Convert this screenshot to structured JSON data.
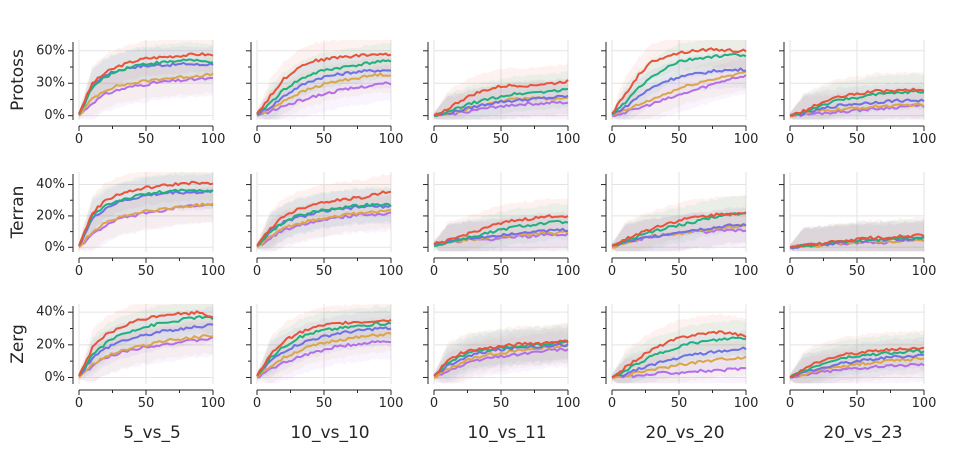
{
  "chart_data": {
    "type": "line",
    "title": "",
    "layout": "3 rows x 5 columns of subplots",
    "rows": [
      "Protoss",
      "Terran",
      "Zerg"
    ],
    "columns": [
      "5_vs_5",
      "10_vs_10",
      "10_vs_11",
      "20_vs_20",
      "20_vs_23"
    ],
    "x_ticks": [
      0,
      50,
      100
    ],
    "xlim": [
      0,
      100
    ],
    "y_ticks": {
      "Protoss": [
        "0%",
        "30%",
        "60%"
      ],
      "Terran": [
        "0%",
        "20%",
        "40%"
      ],
      "Zerg": [
        "0%",
        "20%",
        "40%"
      ]
    },
    "ylim": {
      "Protoss": [
        -0.04,
        0.7
      ],
      "Terran": [
        -0.03,
        0.48
      ],
      "Zerg": [
        -0.04,
        0.45
      ]
    },
    "x": [
      0,
      10,
      20,
      30,
      40,
      50,
      60,
      70,
      80,
      90,
      100
    ],
    "series_styles": [
      {
        "name": "red",
        "color": "#e8533a"
      },
      {
        "name": "green",
        "color": "#1fb07e"
      },
      {
        "name": "blue",
        "color": "#6f6fe6"
      },
      {
        "name": "orange",
        "color": "#dca548"
      },
      {
        "name": "purple",
        "color": "#b46fe8"
      }
    ],
    "panels": [
      {
        "row": "Protoss",
        "col": "5_vs_5",
        "series": [
          [
            0.02,
            0.3,
            0.4,
            0.46,
            0.5,
            0.53,
            0.54,
            0.55,
            0.56,
            0.57,
            0.56
          ],
          [
            0.01,
            0.26,
            0.36,
            0.42,
            0.46,
            0.48,
            0.49,
            0.5,
            0.52,
            0.5,
            0.5
          ],
          [
            0.01,
            0.28,
            0.38,
            0.42,
            0.45,
            0.46,
            0.47,
            0.47,
            0.48,
            0.47,
            0.48
          ],
          [
            0.0,
            0.16,
            0.24,
            0.28,
            0.3,
            0.32,
            0.34,
            0.35,
            0.36,
            0.37,
            0.38
          ],
          [
            0.0,
            0.12,
            0.2,
            0.24,
            0.27,
            0.29,
            0.31,
            0.32,
            0.33,
            0.34,
            0.34
          ]
        ]
      },
      {
        "row": "Protoss",
        "col": "10_vs_10",
        "series": [
          [
            0.02,
            0.18,
            0.34,
            0.44,
            0.5,
            0.52,
            0.54,
            0.55,
            0.56,
            0.57,
            0.56
          ],
          [
            0.01,
            0.12,
            0.24,
            0.32,
            0.38,
            0.42,
            0.44,
            0.46,
            0.48,
            0.5,
            0.5
          ],
          [
            0.01,
            0.08,
            0.18,
            0.26,
            0.32,
            0.36,
            0.38,
            0.4,
            0.41,
            0.42,
            0.42
          ],
          [
            0.0,
            0.06,
            0.14,
            0.2,
            0.25,
            0.29,
            0.32,
            0.34,
            0.36,
            0.38,
            0.38
          ],
          [
            0.0,
            0.04,
            0.09,
            0.13,
            0.17,
            0.2,
            0.23,
            0.25,
            0.27,
            0.29,
            0.3
          ]
        ]
      },
      {
        "row": "Protoss",
        "col": "10_vs_11",
        "series": [
          [
            0.0,
            0.06,
            0.14,
            0.2,
            0.24,
            0.27,
            0.28,
            0.28,
            0.29,
            0.3,
            0.32
          ],
          [
            0.0,
            0.03,
            0.08,
            0.12,
            0.15,
            0.18,
            0.2,
            0.21,
            0.22,
            0.23,
            0.24
          ],
          [
            0.0,
            0.02,
            0.05,
            0.08,
            0.11,
            0.13,
            0.14,
            0.15,
            0.16,
            0.17,
            0.18
          ],
          [
            0.0,
            0.02,
            0.05,
            0.08,
            0.11,
            0.14,
            0.15,
            0.16,
            0.16,
            0.16,
            0.16
          ],
          [
            0.0,
            0.01,
            0.03,
            0.05,
            0.07,
            0.09,
            0.1,
            0.11,
            0.11,
            0.12,
            0.12
          ]
        ]
      },
      {
        "row": "Protoss",
        "col": "20_vs_20",
        "series": [
          [
            0.02,
            0.2,
            0.38,
            0.5,
            0.55,
            0.58,
            0.6,
            0.61,
            0.61,
            0.6,
            0.6
          ],
          [
            0.01,
            0.12,
            0.26,
            0.36,
            0.44,
            0.5,
            0.52,
            0.54,
            0.55,
            0.56,
            0.56
          ],
          [
            0.01,
            0.08,
            0.18,
            0.26,
            0.32,
            0.36,
            0.38,
            0.4,
            0.42,
            0.42,
            0.43
          ],
          [
            0.0,
            0.05,
            0.1,
            0.15,
            0.2,
            0.25,
            0.29,
            0.32,
            0.35,
            0.38,
            0.4
          ],
          [
            0.0,
            0.03,
            0.07,
            0.11,
            0.15,
            0.19,
            0.23,
            0.27,
            0.31,
            0.35,
            0.37
          ]
        ]
      },
      {
        "row": "Protoss",
        "col": "20_vs_23",
        "series": [
          [
            0.0,
            0.04,
            0.1,
            0.15,
            0.18,
            0.2,
            0.22,
            0.23,
            0.23,
            0.24,
            0.23
          ],
          [
            0.0,
            0.03,
            0.08,
            0.12,
            0.15,
            0.17,
            0.19,
            0.2,
            0.21,
            0.22,
            0.22
          ],
          [
            0.0,
            0.02,
            0.05,
            0.08,
            0.1,
            0.11,
            0.12,
            0.13,
            0.14,
            0.14,
            0.14
          ],
          [
            0.0,
            0.02,
            0.04,
            0.05,
            0.06,
            0.07,
            0.08,
            0.09,
            0.09,
            0.1,
            0.1
          ],
          [
            0.0,
            0.01,
            0.02,
            0.03,
            0.04,
            0.05,
            0.06,
            0.07,
            0.08,
            0.09,
            0.09
          ]
        ]
      },
      {
        "row": "Terran",
        "col": "5_vs_5",
        "series": [
          [
            0.01,
            0.22,
            0.3,
            0.34,
            0.36,
            0.38,
            0.39,
            0.4,
            0.41,
            0.41,
            0.4
          ],
          [
            0.01,
            0.2,
            0.27,
            0.3,
            0.32,
            0.34,
            0.35,
            0.36,
            0.36,
            0.36,
            0.36
          ],
          [
            0.01,
            0.18,
            0.25,
            0.29,
            0.31,
            0.33,
            0.34,
            0.35,
            0.35,
            0.35,
            0.36
          ],
          [
            0.0,
            0.1,
            0.16,
            0.19,
            0.21,
            0.23,
            0.24,
            0.25,
            0.26,
            0.27,
            0.28
          ],
          [
            0.0,
            0.08,
            0.14,
            0.18,
            0.2,
            0.22,
            0.23,
            0.25,
            0.26,
            0.26,
            0.27
          ]
        ]
      },
      {
        "row": "Terran",
        "col": "10_vs_10",
        "series": [
          [
            0.01,
            0.12,
            0.2,
            0.24,
            0.27,
            0.29,
            0.3,
            0.31,
            0.32,
            0.34,
            0.36
          ],
          [
            0.01,
            0.1,
            0.16,
            0.2,
            0.22,
            0.24,
            0.25,
            0.26,
            0.27,
            0.27,
            0.27
          ],
          [
            0.01,
            0.1,
            0.16,
            0.19,
            0.21,
            0.23,
            0.24,
            0.25,
            0.26,
            0.26,
            0.26
          ],
          [
            0.0,
            0.07,
            0.12,
            0.15,
            0.17,
            0.19,
            0.2,
            0.21,
            0.22,
            0.23,
            0.23
          ],
          [
            0.0,
            0.06,
            0.11,
            0.14,
            0.16,
            0.18,
            0.19,
            0.2,
            0.21,
            0.21,
            0.22
          ]
        ]
      },
      {
        "row": "Terran",
        "col": "10_vs_11",
        "series": [
          [
            0.02,
            0.04,
            0.07,
            0.1,
            0.13,
            0.15,
            0.17,
            0.18,
            0.19,
            0.2,
            0.2
          ],
          [
            0.01,
            0.03,
            0.05,
            0.07,
            0.09,
            0.11,
            0.13,
            0.14,
            0.15,
            0.16,
            0.16
          ],
          [
            0.02,
            0.04,
            0.05,
            0.06,
            0.07,
            0.08,
            0.09,
            0.1,
            0.1,
            0.11,
            0.11
          ],
          [
            0.02,
            0.03,
            0.04,
            0.05,
            0.06,
            0.07,
            0.08,
            0.08,
            0.09,
            0.09,
            0.1
          ],
          [
            0.02,
            0.03,
            0.04,
            0.05,
            0.05,
            0.06,
            0.07,
            0.07,
            0.08,
            0.08,
            0.08
          ]
        ]
      },
      {
        "row": "Terran",
        "col": "20_vs_20",
        "series": [
          [
            0.01,
            0.05,
            0.09,
            0.12,
            0.15,
            0.17,
            0.19,
            0.2,
            0.21,
            0.22,
            0.21
          ],
          [
            0.01,
            0.04,
            0.07,
            0.1,
            0.12,
            0.14,
            0.16,
            0.18,
            0.2,
            0.21,
            0.22
          ],
          [
            0.01,
            0.03,
            0.05,
            0.07,
            0.08,
            0.1,
            0.11,
            0.12,
            0.13,
            0.14,
            0.14
          ],
          [
            0.0,
            0.03,
            0.05,
            0.07,
            0.08,
            0.09,
            0.1,
            0.11,
            0.12,
            0.13,
            0.14
          ],
          [
            0.0,
            0.03,
            0.05,
            0.07,
            0.08,
            0.09,
            0.1,
            0.1,
            0.11,
            0.11,
            0.11
          ]
        ]
      },
      {
        "row": "Terran",
        "col": "20_vs_23",
        "series": [
          [
            0.0,
            0.01,
            0.02,
            0.03,
            0.04,
            0.05,
            0.06,
            0.06,
            0.07,
            0.07,
            0.08
          ],
          [
            0.0,
            0.01,
            0.02,
            0.03,
            0.04,
            0.04,
            0.05,
            0.05,
            0.06,
            0.06,
            0.06
          ],
          [
            0.0,
            0.01,
            0.02,
            0.02,
            0.03,
            0.04,
            0.04,
            0.05,
            0.05,
            0.05,
            0.06
          ],
          [
            0.0,
            0.01,
            0.01,
            0.02,
            0.03,
            0.03,
            0.04,
            0.04,
            0.04,
            0.05,
            0.05
          ],
          [
            0.0,
            0.01,
            0.01,
            0.02,
            0.02,
            0.03,
            0.03,
            0.03,
            0.04,
            0.04,
            0.04
          ]
        ]
      },
      {
        "row": "Zerg",
        "col": "5_vs_5",
        "series": [
          [
            0.01,
            0.18,
            0.26,
            0.3,
            0.34,
            0.36,
            0.38,
            0.39,
            0.39,
            0.4,
            0.37
          ],
          [
            0.01,
            0.14,
            0.21,
            0.26,
            0.29,
            0.31,
            0.33,
            0.34,
            0.36,
            0.37,
            0.36
          ],
          [
            0.01,
            0.12,
            0.18,
            0.22,
            0.24,
            0.26,
            0.28,
            0.29,
            0.3,
            0.31,
            0.33
          ],
          [
            0.0,
            0.08,
            0.13,
            0.16,
            0.18,
            0.2,
            0.22,
            0.23,
            0.24,
            0.25,
            0.26
          ],
          [
            0.0,
            0.07,
            0.12,
            0.15,
            0.17,
            0.19,
            0.2,
            0.21,
            0.22,
            0.23,
            0.24
          ]
        ]
      },
      {
        "row": "Zerg",
        "col": "10_vs_10",
        "series": [
          [
            0.01,
            0.14,
            0.22,
            0.27,
            0.3,
            0.32,
            0.33,
            0.34,
            0.34,
            0.35,
            0.35
          ],
          [
            0.01,
            0.12,
            0.19,
            0.24,
            0.27,
            0.29,
            0.3,
            0.31,
            0.32,
            0.33,
            0.33
          ],
          [
            0.01,
            0.1,
            0.16,
            0.2,
            0.23,
            0.25,
            0.27,
            0.28,
            0.29,
            0.3,
            0.3
          ],
          [
            0.0,
            0.07,
            0.12,
            0.16,
            0.19,
            0.21,
            0.23,
            0.24,
            0.25,
            0.26,
            0.27
          ],
          [
            0.0,
            0.05,
            0.09,
            0.12,
            0.15,
            0.17,
            0.19,
            0.2,
            0.21,
            0.22,
            0.22
          ]
        ]
      },
      {
        "row": "Zerg",
        "col": "10_vs_11",
        "series": [
          [
            0.01,
            0.1,
            0.15,
            0.17,
            0.18,
            0.19,
            0.2,
            0.21,
            0.21,
            0.22,
            0.22
          ],
          [
            0.01,
            0.09,
            0.13,
            0.16,
            0.17,
            0.18,
            0.19,
            0.2,
            0.2,
            0.21,
            0.22
          ],
          [
            0.01,
            0.07,
            0.11,
            0.14,
            0.16,
            0.17,
            0.18,
            0.19,
            0.19,
            0.2,
            0.2
          ],
          [
            0.0,
            0.05,
            0.09,
            0.12,
            0.14,
            0.15,
            0.16,
            0.17,
            0.18,
            0.19,
            0.19
          ],
          [
            0.0,
            0.04,
            0.07,
            0.1,
            0.12,
            0.13,
            0.14,
            0.15,
            0.16,
            0.17,
            0.17
          ]
        ]
      },
      {
        "row": "Zerg",
        "col": "20_vs_20",
        "series": [
          [
            0.0,
            0.06,
            0.12,
            0.17,
            0.21,
            0.24,
            0.26,
            0.27,
            0.28,
            0.27,
            0.25
          ],
          [
            0.0,
            0.04,
            0.09,
            0.13,
            0.16,
            0.19,
            0.21,
            0.22,
            0.23,
            0.24,
            0.24
          ],
          [
            0.0,
            0.02,
            0.05,
            0.08,
            0.1,
            0.12,
            0.14,
            0.15,
            0.16,
            0.17,
            0.18
          ],
          [
            0.0,
            0.01,
            0.03,
            0.05,
            0.06,
            0.08,
            0.09,
            0.1,
            0.11,
            0.12,
            0.12
          ],
          [
            0.0,
            0.01,
            0.01,
            0.02,
            0.03,
            0.03,
            0.04,
            0.04,
            0.04,
            0.05,
            0.05
          ]
        ]
      },
      {
        "row": "Zerg",
        "col": "20_vs_23",
        "series": [
          [
            0.0,
            0.05,
            0.09,
            0.12,
            0.14,
            0.15,
            0.16,
            0.17,
            0.17,
            0.18,
            0.18
          ],
          [
            0.0,
            0.04,
            0.07,
            0.1,
            0.12,
            0.13,
            0.14,
            0.15,
            0.15,
            0.16,
            0.16
          ],
          [
            0.0,
            0.03,
            0.05,
            0.07,
            0.09,
            0.1,
            0.11,
            0.12,
            0.13,
            0.13,
            0.14
          ],
          [
            0.0,
            0.02,
            0.04,
            0.06,
            0.07,
            0.08,
            0.09,
            0.1,
            0.11,
            0.11,
            0.12
          ],
          [
            0.0,
            0.01,
            0.03,
            0.04,
            0.05,
            0.06,
            0.06,
            0.07,
            0.07,
            0.08,
            0.08
          ]
        ]
      }
    ]
  }
}
